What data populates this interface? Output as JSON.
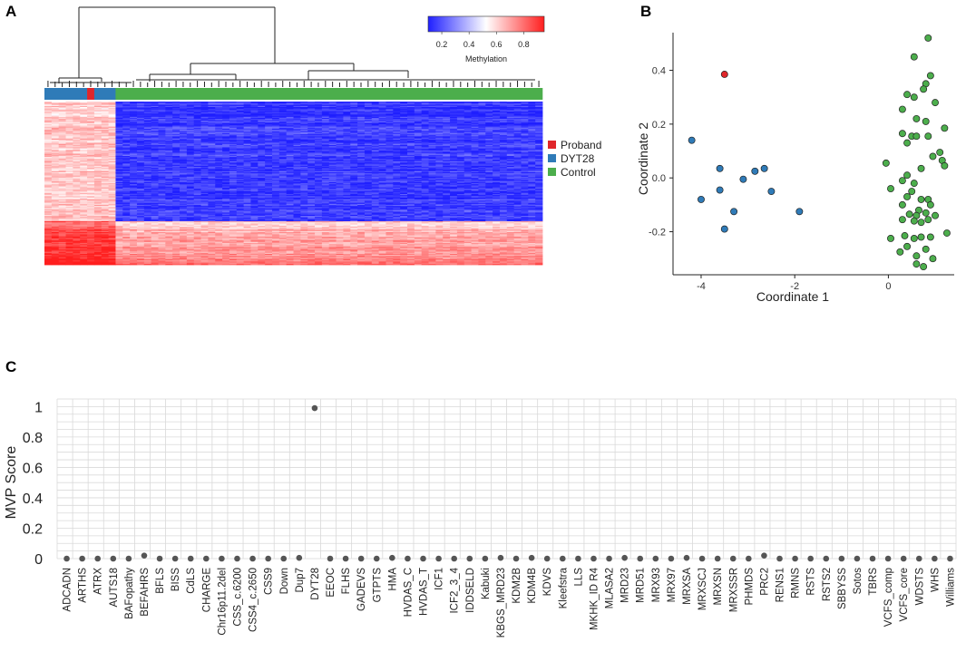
{
  "panels": {
    "a": {
      "label": "A"
    },
    "b": {
      "label": "B"
    },
    "c": {
      "label": "C"
    }
  },
  "colors": {
    "proband": "#e0262a",
    "dyt28": "#2f7bb8",
    "control": "#4cae4c",
    "heat_low": "#1f1fff",
    "heat_mid": "#ffffff",
    "heat_high": "#ff1f1f",
    "dot_c": "#555555",
    "grid": "#d9d9d9"
  },
  "chart_data": [
    {
      "type": "heatmap",
      "panel": "A",
      "colorbar": {
        "label": "Methylation",
        "ticks": [
          "0.2",
          "0.4",
          "0.6",
          "0.8"
        ],
        "range": [
          0.1,
          0.95
        ]
      },
      "legend": [
        "Proband",
        "DYT28",
        "Control"
      ],
      "legend_position": "right",
      "groups": [
        {
          "name": "DYT28",
          "columns": 6
        },
        {
          "name": "Proband",
          "columns": 1
        },
        {
          "name": "DYT28",
          "columns": 3
        },
        {
          "name": "Control",
          "columns": 60
        }
      ],
      "row_blocks": [
        {
          "rows": 110,
          "dyt28_level": 0.62,
          "control_level": 0.06
        },
        {
          "rows": 40,
          "dyt28_level": 0.85,
          "control_level": 0.62
        }
      ]
    },
    {
      "type": "scatter",
      "panel": "B",
      "xlabel": "Coordinate 1",
      "ylabel": "Coordinate 2",
      "xlim": [
        -4.6,
        1.6
      ],
      "ylim": [
        -0.36,
        0.54
      ],
      "xticks": [
        -4,
        -2,
        0
      ],
      "yticks": [
        -0.2,
        0.0,
        0.2,
        0.4
      ],
      "xtick_labels": [
        "-4",
        "-2",
        "0"
      ],
      "ytick_labels": [
        "-0.2",
        "0.0",
        "0.2",
        "0.4"
      ],
      "series": [
        {
          "name": "Proband",
          "points": [
            [
              -3.5,
              0.385
            ]
          ]
        },
        {
          "name": "DYT28",
          "points": [
            [
              -4.2,
              0.14
            ],
            [
              -4.0,
              -0.08
            ],
            [
              -3.6,
              0.035
            ],
            [
              -3.6,
              -0.045
            ],
            [
              -3.5,
              -0.19
            ],
            [
              -3.3,
              -0.125
            ],
            [
              -3.1,
              -0.005
            ],
            [
              -2.85,
              0.025
            ],
            [
              -2.65,
              0.035
            ],
            [
              -2.5,
              -0.05
            ],
            [
              -1.9,
              -0.125
            ]
          ]
        },
        {
          "name": "Control",
          "points": [
            [
              0.85,
              0.52
            ],
            [
              0.55,
              0.45
            ],
            [
              0.9,
              0.38
            ],
            [
              0.8,
              0.35
            ],
            [
              0.75,
              0.33
            ],
            [
              0.4,
              0.31
            ],
            [
              0.55,
              0.3
            ],
            [
              1.0,
              0.28
            ],
            [
              0.3,
              0.255
            ],
            [
              0.6,
              0.22
            ],
            [
              0.8,
              0.21
            ],
            [
              1.2,
              0.185
            ],
            [
              0.3,
              0.165
            ],
            [
              0.5,
              0.155
            ],
            [
              0.6,
              0.155
            ],
            [
              0.85,
              0.155
            ],
            [
              0.4,
              0.13
            ],
            [
              1.1,
              0.095
            ],
            [
              0.95,
              0.08
            ],
            [
              1.15,
              0.065
            ],
            [
              1.2,
              0.045
            ],
            [
              -0.05,
              0.055
            ],
            [
              0.7,
              0.035
            ],
            [
              0.4,
              0.01
            ],
            [
              0.3,
              -0.01
            ],
            [
              0.55,
              -0.02
            ],
            [
              0.05,
              -0.04
            ],
            [
              0.5,
              -0.05
            ],
            [
              0.4,
              -0.07
            ],
            [
              0.7,
              -0.08
            ],
            [
              0.85,
              -0.08
            ],
            [
              0.9,
              -0.1
            ],
            [
              0.3,
              -0.1
            ],
            [
              0.65,
              -0.12
            ],
            [
              0.8,
              -0.13
            ],
            [
              0.45,
              -0.135
            ],
            [
              0.6,
              -0.14
            ],
            [
              1.0,
              -0.14
            ],
            [
              0.85,
              -0.155
            ],
            [
              0.3,
              -0.155
            ],
            [
              0.55,
              -0.16
            ],
            [
              0.7,
              -0.165
            ],
            [
              1.25,
              -0.205
            ],
            [
              0.35,
              -0.215
            ],
            [
              0.05,
              -0.225
            ],
            [
              0.55,
              -0.225
            ],
            [
              0.7,
              -0.22
            ],
            [
              0.9,
              -0.22
            ],
            [
              0.4,
              -0.255
            ],
            [
              0.8,
              -0.265
            ],
            [
              0.25,
              -0.275
            ],
            [
              0.6,
              -0.29
            ],
            [
              0.6,
              -0.32
            ],
            [
              0.75,
              -0.33
            ],
            [
              0.95,
              -0.3
            ]
          ]
        }
      ]
    },
    {
      "type": "scatter",
      "panel": "C",
      "ylabel": "MVP Score",
      "ylim": [
        0,
        1.05
      ],
      "yticks": [
        0,
        0.2,
        0.4,
        0.6,
        0.8,
        1
      ],
      "ytick_labels": [
        "0",
        "0.2",
        "0.4",
        "0.6",
        "0.8",
        "1"
      ],
      "categories": [
        "ADCADN",
        "ARTHS",
        "ATRX",
        "AUTS18",
        "BAFopathy",
        "BEFAHRS",
        "BFLS",
        "BISS",
        "CdLS",
        "CHARGE",
        "Chr16p11.2del",
        "CSS_c.6200",
        "CSS4_c.2650",
        "CSS9",
        "Down",
        "Dup7",
        "DYT28",
        "EEOC",
        "FLHS",
        "GADEVS",
        "GTPTS",
        "HMA",
        "HVDAS_C",
        "HVDAS_T",
        "ICF1",
        "ICF2_3_4",
        "IDDSELD",
        "Kabuki",
        "KBGS_MRD23",
        "KDM2B",
        "KDM4B",
        "KDVS",
        "Kleefstra",
        "LLS",
        "MKHK_ID R4",
        "MLASA2",
        "MRD23",
        "MRD51",
        "MRX93",
        "MRX97",
        "MRXSA",
        "MRXSCJ",
        "MRXSN",
        "MRXSSR",
        "PHMDS",
        "PRC2",
        "RENS1",
        "RMNS",
        "RSTS",
        "RSTS2",
        "SBBYSS",
        "Sotos",
        "TBRS",
        "VCFS_comp",
        "VCFS_core",
        "WDSTS",
        "WHS",
        "Williams"
      ],
      "values": [
        0,
        0,
        0,
        0,
        0,
        0.02,
        0,
        0,
        0,
        0,
        0,
        0,
        0,
        0,
        0,
        0.005,
        0.99,
        0,
        0,
        0,
        0,
        0.005,
        0,
        0,
        0,
        0,
        0,
        0,
        0.005,
        0,
        0.005,
        0,
        0,
        0,
        0,
        0,
        0.005,
        0,
        0,
        0,
        0.005,
        0,
        0,
        0,
        0,
        0.02,
        0,
        0,
        0,
        0,
        0,
        0,
        0,
        0,
        0,
        0,
        0,
        0
      ]
    }
  ]
}
